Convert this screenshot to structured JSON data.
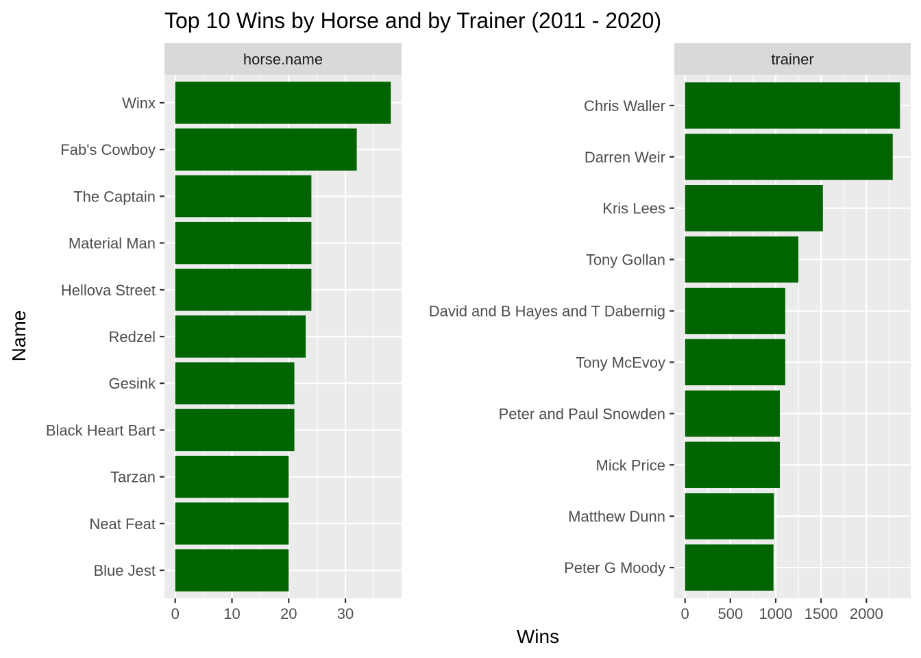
{
  "colors": {
    "bar": "#006400",
    "panel_bg": "#EBEBEB",
    "strip_bg": "#D9D9D9",
    "grid_major": "#FFFFFF",
    "tick": "#333333"
  },
  "chart_data": {
    "type": "bar",
    "orientation": "horizontal",
    "title": "Top 10 Wins by Horse and by Trainer (2011 - 2020)",
    "xlabel": "Wins",
    "ylabel": "Name",
    "grid": true,
    "facets": [
      {
        "strip": "horse.name",
        "categories": [
          "Winx",
          "Fab's Cowboy",
          "The Captain",
          "Material Man",
          "Hellova Street",
          "Redzel",
          "Gesink",
          "Black Heart Bart",
          "Tarzan",
          "Neat Feat",
          "Blue Jest"
        ],
        "values": [
          38,
          32,
          24,
          24,
          24,
          23,
          21,
          21,
          20,
          20,
          20
        ],
        "xlim": [
          -1.9,
          39.9
        ],
        "xticks": [
          0,
          10,
          20,
          30
        ]
      },
      {
        "strip": "trainer",
        "categories": [
          "Chris Waller",
          "Darren Weir",
          "Kris Lees",
          "Tony Gollan",
          "David and B Hayes and T Dabernig",
          "Tony McEvoy",
          "Peter and Paul Snowden",
          "Mick Price",
          "Matthew Dunn",
          "Peter G Moody"
        ],
        "values": [
          2370,
          2290,
          1520,
          1250,
          1105,
          1105,
          1045,
          1045,
          980,
          975
        ],
        "xlim": [
          -118.5,
          2488.5
        ],
        "xticks": [
          0,
          500,
          1000,
          1500,
          2000
        ]
      }
    ]
  }
}
